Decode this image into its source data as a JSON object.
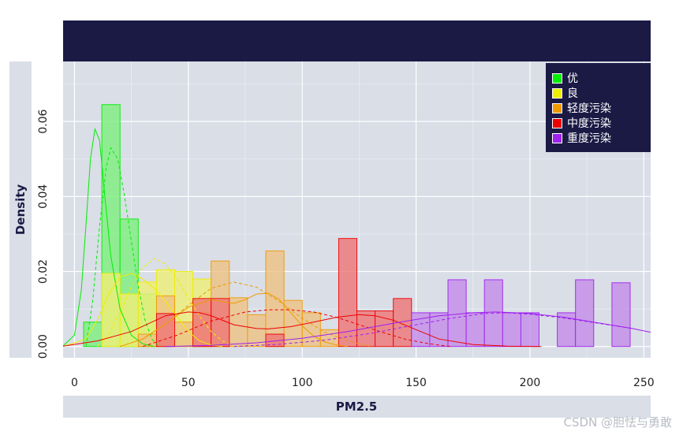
{
  "chart_data": {
    "type": "histogram",
    "xlabel": "PM2.5",
    "ylabel": "Density",
    "xlim": [
      -5,
      253
    ],
    "ylim": [
      -0.003,
      0.076
    ],
    "x_ticks": [
      0,
      50,
      100,
      150,
      200,
      250
    ],
    "y_ticks": [
      0.0,
      0.02,
      0.04,
      0.06
    ],
    "y_tick_labels": [
      "0.00",
      "0.02",
      "0.04",
      "0.06"
    ],
    "grid": true,
    "legend_position": "top-right",
    "series": [
      {
        "name": "优",
        "color": "#00ee00",
        "fill": "#7fef7f",
        "bins": [
          [
            4,
            12,
            0.0065
          ],
          [
            12,
            20,
            0.0645
          ],
          [
            20,
            28,
            0.034
          ],
          [
            28,
            36,
            0.014
          ]
        ],
        "density_solid": [
          [
            -5,
            0.0002
          ],
          [
            0,
            0.003
          ],
          [
            3,
            0.015
          ],
          [
            5,
            0.032
          ],
          [
            7,
            0.05
          ],
          [
            9,
            0.058
          ],
          [
            11,
            0.055
          ],
          [
            13,
            0.042
          ],
          [
            16,
            0.024
          ],
          [
            20,
            0.01
          ],
          [
            25,
            0.003
          ],
          [
            30,
            0.0007
          ],
          [
            35,
            0
          ]
        ],
        "density_dashed": [
          [
            5,
            0
          ],
          [
            8,
            0.012
          ],
          [
            11,
            0.032
          ],
          [
            14,
            0.048
          ],
          [
            16,
            0.053
          ],
          [
            19,
            0.05
          ],
          [
            22,
            0.04
          ],
          [
            25,
            0.028
          ],
          [
            28,
            0.016
          ],
          [
            31,
            0.007
          ],
          [
            34,
            0.002
          ],
          [
            37,
            0
          ]
        ]
      },
      {
        "name": "良",
        "color": "#eeee00",
        "fill": "#eeee77",
        "bins": [
          [
            12,
            20,
            0.0195
          ],
          [
            20,
            28,
            0.014
          ],
          [
            28,
            36,
            0.0172
          ],
          [
            36,
            44,
            0.0205
          ],
          [
            44,
            52,
            0.02
          ],
          [
            52,
            60,
            0.018
          ]
        ],
        "density_solid": [
          [
            -5,
            0
          ],
          [
            5,
            0.002
          ],
          [
            10,
            0.007
          ],
          [
            15,
            0.014
          ],
          [
            20,
            0.0185
          ],
          [
            25,
            0.0195
          ],
          [
            30,
            0.018
          ],
          [
            35,
            0.0155
          ],
          [
            40,
            0.012
          ],
          [
            45,
            0.008
          ],
          [
            50,
            0.004
          ],
          [
            55,
            0.0015
          ],
          [
            60,
            0.0004
          ],
          [
            65,
            0
          ]
        ],
        "density_dashed": [
          [
            10,
            0
          ],
          [
            15,
            0.003
          ],
          [
            20,
            0.009
          ],
          [
            25,
            0.016
          ],
          [
            30,
            0.021
          ],
          [
            35,
            0.0235
          ],
          [
            40,
            0.022
          ],
          [
            45,
            0.018
          ],
          [
            50,
            0.013
          ],
          [
            55,
            0.008
          ],
          [
            60,
            0.004
          ],
          [
            65,
            0.0015
          ],
          [
            70,
            0
          ]
        ]
      },
      {
        "name": "轻度污染",
        "color": "#ee9a00",
        "fill": "#eec285",
        "bins": [
          [
            28,
            36,
            0.0033
          ],
          [
            36,
            44,
            0.0135
          ],
          [
            44,
            52,
            0.0065
          ],
          [
            52,
            60,
            0.009
          ],
          [
            60,
            68,
            0.0228
          ],
          [
            68,
            76,
            0.013
          ],
          [
            76,
            84,
            0.0085
          ],
          [
            84,
            92,
            0.0255
          ],
          [
            92,
            100,
            0.0123
          ],
          [
            100,
            108,
            0.009
          ],
          [
            108,
            116,
            0.0045
          ]
        ],
        "density_solid": [
          [
            20,
            0
          ],
          [
            30,
            0.002
          ],
          [
            40,
            0.006
          ],
          [
            50,
            0.0105
          ],
          [
            60,
            0.0125
          ],
          [
            65,
            0.012
          ],
          [
            70,
            0.0115
          ],
          [
            75,
            0.0125
          ],
          [
            80,
            0.014
          ],
          [
            85,
            0.0142
          ],
          [
            90,
            0.0125
          ],
          [
            95,
            0.009
          ],
          [
            100,
            0.0055
          ],
          [
            105,
            0.0028
          ],
          [
            110,
            0.0012
          ],
          [
            115,
            0.0004
          ],
          [
            120,
            0
          ]
        ],
        "density_dashed": [
          [
            20,
            0
          ],
          [
            30,
            0.002
          ],
          [
            40,
            0.006
          ],
          [
            50,
            0.011
          ],
          [
            60,
            0.0155
          ],
          [
            70,
            0.0172
          ],
          [
            80,
            0.0158
          ],
          [
            90,
            0.012
          ],
          [
            100,
            0.0075
          ],
          [
            110,
            0.0038
          ],
          [
            120,
            0.0015
          ],
          [
            130,
            0
          ]
        ]
      },
      {
        "name": "中度污染",
        "color": "#ee0000",
        "fill": "#ee7777",
        "bins": [
          [
            36,
            44,
            0.0088
          ],
          [
            52,
            60,
            0.0128
          ],
          [
            60,
            68,
            0.0128
          ],
          [
            84,
            92,
            0.0033
          ],
          [
            116,
            124,
            0.0288
          ],
          [
            124,
            132,
            0.0095
          ],
          [
            132,
            140,
            0.0095
          ],
          [
            140,
            148,
            0.0128
          ]
        ],
        "density_solid": [
          [
            -5,
            0.0001
          ],
          [
            10,
            0.0015
          ],
          [
            25,
            0.004
          ],
          [
            40,
            0.0082
          ],
          [
            50,
            0.0092
          ],
          [
            55,
            0.009
          ],
          [
            60,
            0.0082
          ],
          [
            65,
            0.007
          ],
          [
            70,
            0.0058
          ],
          [
            80,
            0.0048
          ],
          [
            85,
            0.0047
          ],
          [
            95,
            0.0053
          ],
          [
            105,
            0.0065
          ],
          [
            115,
            0.0078
          ],
          [
            125,
            0.0085
          ],
          [
            132,
            0.0082
          ],
          [
            140,
            0.007
          ],
          [
            150,
            0.0045
          ],
          [
            160,
            0.002
          ],
          [
            175,
            0.0005
          ],
          [
            190,
            0.0001
          ],
          [
            205,
            0
          ]
        ],
        "density_dashed": [
          [
            30,
            0
          ],
          [
            45,
            0.003
          ],
          [
            60,
            0.0068
          ],
          [
            75,
            0.0092
          ],
          [
            85,
            0.0098
          ],
          [
            95,
            0.0098
          ],
          [
            105,
            0.0092
          ],
          [
            115,
            0.0078
          ],
          [
            125,
            0.0058
          ],
          [
            135,
            0.0038
          ],
          [
            145,
            0.002
          ],
          [
            155,
            0.0008
          ],
          [
            165,
            0
          ]
        ]
      },
      {
        "name": "重度污染",
        "color": "#a020f0",
        "fill": "#c48ee8",
        "bins": [
          [
            148,
            156,
            0.009
          ],
          [
            156,
            164,
            0.009
          ],
          [
            164,
            172,
            0.0178
          ],
          [
            172,
            180,
            0.009
          ],
          [
            180,
            188,
            0.0178
          ],
          [
            188,
            196,
            0.009
          ],
          [
            196,
            204,
            0.009
          ],
          [
            212,
            220,
            0.009
          ],
          [
            220,
            228,
            0.0178
          ],
          [
            236,
            244,
            0.017
          ]
        ],
        "density_solid": [
          [
            40,
            0
          ],
          [
            60,
            0.0003
          ],
          [
            80,
            0.001
          ],
          [
            100,
            0.0022
          ],
          [
            120,
            0.004
          ],
          [
            140,
            0.0062
          ],
          [
            160,
            0.0082
          ],
          [
            175,
            0.009
          ],
          [
            185,
            0.0092
          ],
          [
            200,
            0.0088
          ],
          [
            215,
            0.0078
          ],
          [
            230,
            0.0063
          ],
          [
            245,
            0.0048
          ],
          [
            253,
            0.0038
          ]
        ],
        "density_dashed": [
          [
            70,
            0
          ],
          [
            90,
            0.0006
          ],
          [
            110,
            0.0017
          ],
          [
            130,
            0.0035
          ],
          [
            150,
            0.0058
          ],
          [
            165,
            0.0075
          ],
          [
            180,
            0.0088
          ],
          [
            190,
            0.009
          ],
          [
            200,
            0.0086
          ],
          [
            215,
            0.0076
          ],
          [
            230,
            0.0062
          ],
          [
            245,
            0.0048
          ]
        ]
      }
    ]
  },
  "watermark": "CSDN @胆怯与勇敢"
}
